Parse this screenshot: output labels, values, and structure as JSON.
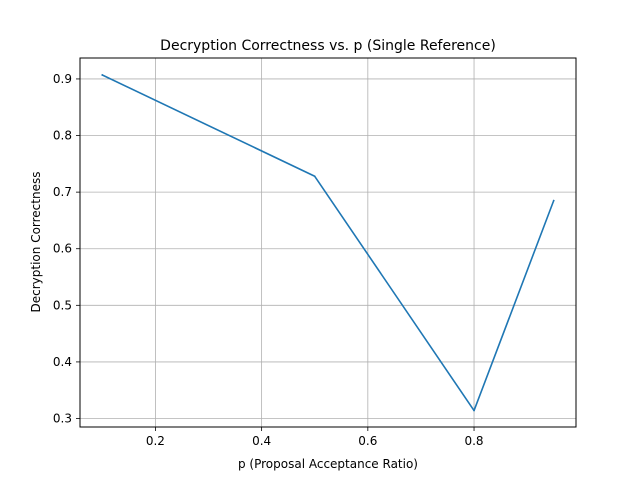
{
  "chart_data": {
    "type": "line",
    "title": "Decryption Correctness vs. p (Single Reference)",
    "xlabel": "p (Proposal Acceptance Ratio)",
    "ylabel": "Decryption Correctness",
    "xlim": [
      0.058,
      0.992
    ],
    "ylim": [
      0.285,
      0.937
    ],
    "xticks": [
      0.2,
      0.4,
      0.6,
      0.8
    ],
    "xtick_labels": [
      "0.2",
      "0.4",
      "0.6",
      "0.8"
    ],
    "yticks": [
      0.3,
      0.4,
      0.5,
      0.6,
      0.7,
      0.8,
      0.9
    ],
    "ytick_labels": [
      "0.3",
      "0.4",
      "0.5",
      "0.6",
      "0.7",
      "0.8",
      "0.9"
    ],
    "grid": true,
    "series": [
      {
        "x": [
          0.1,
          0.5,
          0.8,
          0.95
        ],
        "values": [
          0.907,
          0.728,
          0.314,
          0.685
        ],
        "color": "#1f77b4"
      }
    ]
  }
}
